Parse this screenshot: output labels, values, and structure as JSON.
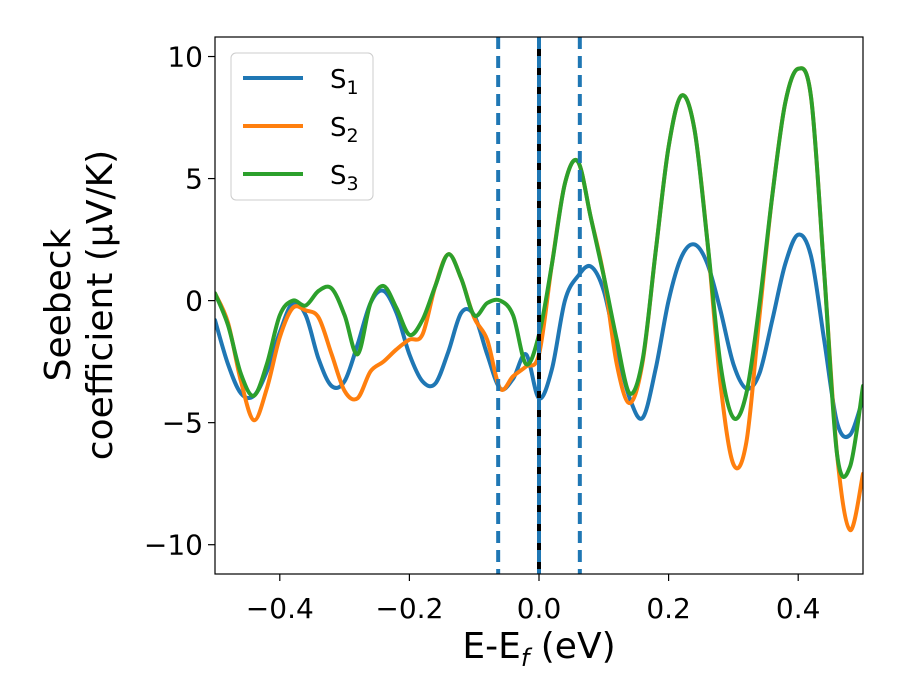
{
  "chart_data": {
    "type": "line",
    "xlabel": {
      "main": "E-E",
      "sub": "f",
      "unit": " (eV)"
    },
    "ylabel": {
      "line1": "Seebeck",
      "line2": "coefficient  (μV/K)"
    },
    "xlim": [
      -0.5,
      0.5
    ],
    "ylim": [
      -11.2,
      10.8
    ],
    "x_ticks": [
      -0.4,
      -0.2,
      0.0,
      0.2,
      0.4
    ],
    "x_tick_labels": [
      "−0.4",
      "−0.2",
      "0.0",
      "0.2",
      "0.4"
    ],
    "y_ticks": [
      -10,
      -5,
      0,
      5,
      10
    ],
    "y_tick_labels": [
      "−10",
      "−5",
      "0",
      "5",
      "10"
    ],
    "legend_position": "top-left",
    "grid": false,
    "vertical_lines": [
      {
        "x": -0.063,
        "style": "dashed",
        "color": "#1f77b4"
      },
      {
        "x": 0.0,
        "style": "solid",
        "color": "#000000"
      },
      {
        "x": 0.0,
        "style": "dashed",
        "color": "#1f77b4"
      },
      {
        "x": 0.063,
        "style": "dashed",
        "color": "#1f77b4"
      }
    ],
    "series": [
      {
        "name": "S",
        "sub": "1",
        "color": "#1f77b4",
        "x": [
          -0.5,
          -0.48,
          -0.46,
          -0.44,
          -0.42,
          -0.4,
          -0.38,
          -0.36,
          -0.34,
          -0.32,
          -0.3,
          -0.28,
          -0.26,
          -0.24,
          -0.22,
          -0.2,
          -0.18,
          -0.16,
          -0.14,
          -0.12,
          -0.1,
          -0.08,
          -0.06,
          -0.04,
          -0.02,
          0.0,
          0.02,
          0.04,
          0.06,
          0.08,
          0.1,
          0.12,
          0.14,
          0.16,
          0.18,
          0.2,
          0.22,
          0.24,
          0.26,
          0.28,
          0.3,
          0.32,
          0.34,
          0.36,
          0.38,
          0.4,
          0.42,
          0.44,
          0.46,
          0.48,
          0.5
        ],
        "values": [
          -0.8,
          -2.6,
          -3.8,
          -3.9,
          -2.9,
          -1.3,
          -0.1,
          -0.6,
          -2.4,
          -3.5,
          -3.3,
          -1.8,
          -0.1,
          0.4,
          -0.5,
          -2.2,
          -3.3,
          -3.4,
          -2.1,
          -0.5,
          -0.6,
          -2.2,
          -3.6,
          -3.2,
          -2.2,
          -4.0,
          -2.8,
          0.0,
          1.0,
          1.4,
          0.4,
          -2.0,
          -4.0,
          -4.8,
          -2.8,
          0.0,
          1.8,
          2.3,
          1.5,
          -0.4,
          -2.6,
          -3.6,
          -3.0,
          -0.8,
          1.5,
          2.7,
          1.8,
          -1.6,
          -5.0,
          -5.5,
          -4.0
        ]
      },
      {
        "name": "S",
        "sub": "2",
        "color": "#ff7f0e",
        "x": [
          -0.5,
          -0.48,
          -0.46,
          -0.44,
          -0.42,
          -0.4,
          -0.38,
          -0.36,
          -0.34,
          -0.32,
          -0.3,
          -0.28,
          -0.26,
          -0.24,
          -0.22,
          -0.2,
          -0.18,
          -0.16,
          -0.14,
          -0.12,
          -0.1,
          -0.08,
          -0.06,
          -0.04,
          -0.02,
          0.0,
          0.02,
          0.04,
          0.06,
          0.08,
          0.1,
          0.12,
          0.14,
          0.16,
          0.18,
          0.2,
          0.22,
          0.24,
          0.26,
          0.28,
          0.3,
          0.32,
          0.34,
          0.36,
          0.38,
          0.4,
          0.42,
          0.44,
          0.46,
          0.48,
          0.5
        ],
        "values": [
          0.3,
          -0.9,
          -3.3,
          -4.9,
          -3.6,
          -1.5,
          -0.3,
          -0.4,
          -0.7,
          -2.2,
          -3.7,
          -4.0,
          -2.9,
          -2.5,
          -2.0,
          -1.6,
          -1.4,
          0.6,
          1.9,
          0.9,
          -0.7,
          -1.6,
          -3.6,
          -3.1,
          -2.7,
          -2.2,
          1.5,
          4.8,
          5.7,
          3.4,
          1.0,
          -2.6,
          -4.2,
          -2.5,
          2.0,
          6.3,
          8.4,
          7.0,
          2.4,
          -3.4,
          -6.7,
          -5.8,
          -0.7,
          4.3,
          8.1,
          9.5,
          8.3,
          1.2,
          -6.3,
          -9.4,
          -7.1
        ]
      },
      {
        "name": "S",
        "sub": "3",
        "color": "#2ca02c",
        "x": [
          -0.5,
          -0.48,
          -0.46,
          -0.44,
          -0.42,
          -0.4,
          -0.38,
          -0.36,
          -0.34,
          -0.32,
          -0.3,
          -0.28,
          -0.26,
          -0.24,
          -0.22,
          -0.2,
          -0.18,
          -0.16,
          -0.14,
          -0.12,
          -0.1,
          -0.08,
          -0.06,
          -0.04,
          -0.02,
          0.0,
          0.02,
          0.04,
          0.06,
          0.08,
          0.1,
          0.12,
          0.14,
          0.16,
          0.18,
          0.2,
          0.22,
          0.24,
          0.26,
          0.28,
          0.3,
          0.32,
          0.34,
          0.36,
          0.38,
          0.4,
          0.42,
          0.44,
          0.46,
          0.48,
          0.5
        ],
        "values": [
          0.3,
          -1.0,
          -3.0,
          -3.9,
          -2.6,
          -0.6,
          0.0,
          -0.2,
          0.4,
          0.5,
          -0.6,
          -2.2,
          -0.1,
          0.6,
          -0.3,
          -1.4,
          -0.8,
          0.6,
          1.9,
          0.9,
          -0.6,
          -0.1,
          0.0,
          -0.6,
          -2.6,
          -1.4,
          1.5,
          4.8,
          5.7,
          3.4,
          1.0,
          -1.6,
          -3.8,
          -2.4,
          2.0,
          6.3,
          8.4,
          7.0,
          2.4,
          -2.6,
          -4.8,
          -3.8,
          -0.2,
          4.3,
          8.1,
          9.5,
          8.3,
          1.2,
          -6.3,
          -6.8,
          -3.5
        ]
      }
    ]
  }
}
